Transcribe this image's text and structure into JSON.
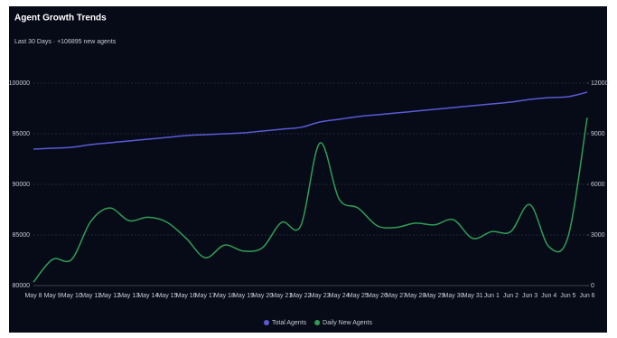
{
  "chart_data": {
    "type": "line",
    "title": "Agent Growth Trends",
    "subtitle": "Last 30 Days · +106895 new agents",
    "categories": [
      "May 8",
      "May 9",
      "May 10",
      "May 11",
      "May 12",
      "May 13",
      "May 14",
      "May 15",
      "May 16",
      "May 17",
      "May 18",
      "May 19",
      "May 20",
      "May 21",
      "May 22",
      "May 23",
      "May 24",
      "May 25",
      "May 26",
      "May 27",
      "May 28",
      "May 29",
      "May 30",
      "May 31",
      "Jun 1",
      "Jun 2",
      "Jun 3",
      "Jun 4",
      "Jun 5",
      "Jun 6"
    ],
    "series": [
      {
        "name": "Total Agents",
        "color": "#5b5bd6",
        "axis": "y",
        "values": [
          93480,
          93570,
          93660,
          93930,
          94110,
          94290,
          94460,
          94640,
          94820,
          94910,
          95000,
          95090,
          95270,
          95450,
          95630,
          96160,
          96430,
          96700,
          96880,
          97050,
          97230,
          97410,
          97590,
          97770,
          97950,
          98130,
          98390,
          98570,
          98660,
          99110
        ]
      },
      {
        "name": "Daily New Agents",
        "color": "#2f9e55",
        "axis": "y2",
        "values": [
          200,
          1550,
          1550,
          3800,
          4600,
          3850,
          4050,
          3750,
          2800,
          1650,
          2400,
          2050,
          2250,
          3750,
          3550,
          8450,
          5150,
          4600,
          3550,
          3450,
          3700,
          3600,
          3900,
          2800,
          3200,
          3200,
          4800,
          2300,
          2900,
          9950
        ]
      }
    ],
    "ylim": [
      80000,
      100000
    ],
    "yticks": [
      80000,
      85000,
      90000,
      95000,
      100000
    ],
    "y2lim": [
      0,
      12000
    ],
    "y2ticks": [
      0,
      3000,
      6000,
      9000,
      12000
    ],
    "grid": true,
    "legend": "bottom"
  }
}
